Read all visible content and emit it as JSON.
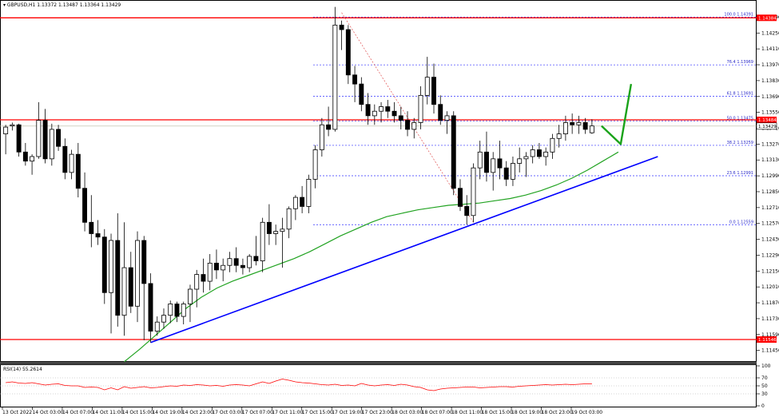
{
  "chart_data": [
    {
      "type": "candlestick",
      "symbol_header": "GBPUSD,H1  1.13372 1.13487 1.13364 1.13429",
      "ylim": [
        1.1137,
        1.1452
      ],
      "y_ticks": [
        "1.14530",
        "1.14390",
        "1.14250",
        "1.14110",
        "1.13970",
        "1.13830",
        "1.13690",
        "1.13550",
        "1.13410",
        "1.13270",
        "1.13130",
        "1.12990",
        "1.12850",
        "1.12710",
        "1.12570",
        "1.12430",
        "1.12290",
        "1.12150",
        "1.12010",
        "1.11870",
        "1.11730",
        "1.11590",
        "1.11450"
      ],
      "x_labels": [
        "13 Oct 2022",
        "14 Oct 03:00",
        "14 Oct 07:00",
        "14 Oct 11:00",
        "14 Oct 15:00",
        "14 Oct 19:00",
        "14 Oct 23:00",
        "17 Oct 03:00",
        "17 Oct 07:00",
        "17 Oct 11:00",
        "17 Oct 15:00",
        "17 Oct 19:00",
        "17 Oct 23:00",
        "18 Oct 03:00",
        "18 Oct 07:00",
        "18 Oct 11:00",
        "18 Oct 15:00",
        "18 Oct 19:00",
        "18 Oct 23:00",
        "19 Oct 03:00"
      ],
      "candles": [
        {
          "o": 1.1336,
          "h": 1.1344,
          "l": 1.1318,
          "c": 1.1342
        },
        {
          "o": 1.1343,
          "h": 1.1346,
          "l": 1.1339,
          "c": 1.1344
        },
        {
          "o": 1.1344,
          "h": 1.1345,
          "l": 1.1316,
          "c": 1.132
        },
        {
          "o": 1.132,
          "h": 1.1328,
          "l": 1.1308,
          "c": 1.1312
        },
        {
          "o": 1.1312,
          "h": 1.1318,
          "l": 1.13,
          "c": 1.1316
        },
        {
          "o": 1.1316,
          "h": 1.1364,
          "l": 1.1314,
          "c": 1.1348
        },
        {
          "o": 1.1348,
          "h": 1.1358,
          "l": 1.131,
          "c": 1.1314
        },
        {
          "o": 1.1314,
          "h": 1.1345,
          "l": 1.1308,
          "c": 1.134
        },
        {
          "o": 1.134,
          "h": 1.1344,
          "l": 1.1321,
          "c": 1.1325
        },
        {
          "o": 1.1325,
          "h": 1.1332,
          "l": 1.1296,
          "c": 1.1302
        },
        {
          "o": 1.1302,
          "h": 1.1322,
          "l": 1.1296,
          "c": 1.1318
        },
        {
          "o": 1.1318,
          "h": 1.1328,
          "l": 1.128,
          "c": 1.1288
        },
        {
          "o": 1.1288,
          "h": 1.1302,
          "l": 1.125,
          "c": 1.1258
        },
        {
          "o": 1.1258,
          "h": 1.1282,
          "l": 1.1236,
          "c": 1.1248
        },
        {
          "o": 1.1248,
          "h": 1.126,
          "l": 1.1238,
          "c": 1.1245
        },
        {
          "o": 1.1245,
          "h": 1.1252,
          "l": 1.1186,
          "c": 1.1196
        },
        {
          "o": 1.1196,
          "h": 1.1248,
          "l": 1.116,
          "c": 1.1242
        },
        {
          "o": 1.1242,
          "h": 1.1266,
          "l": 1.1166,
          "c": 1.1176
        },
        {
          "o": 1.1176,
          "h": 1.1258,
          "l": 1.1158,
          "c": 1.1218
        },
        {
          "o": 1.1218,
          "h": 1.1232,
          "l": 1.1178,
          "c": 1.1184
        },
        {
          "o": 1.1184,
          "h": 1.125,
          "l": 1.117,
          "c": 1.1242
        },
        {
          "o": 1.1242,
          "h": 1.1246,
          "l": 1.1154,
          "c": 1.1204
        },
        {
          "o": 1.1204,
          "h": 1.1213,
          "l": 1.1152,
          "c": 1.1162
        },
        {
          "o": 1.1162,
          "h": 1.1175,
          "l": 1.1158,
          "c": 1.117
        },
        {
          "o": 1.117,
          "h": 1.1182,
          "l": 1.1164,
          "c": 1.1176
        },
        {
          "o": 1.1176,
          "h": 1.1189,
          "l": 1.1169,
          "c": 1.1186
        },
        {
          "o": 1.1186,
          "h": 1.1188,
          "l": 1.117,
          "c": 1.1175
        },
        {
          "o": 1.1175,
          "h": 1.1188,
          "l": 1.1168,
          "c": 1.1186
        },
        {
          "o": 1.1186,
          "h": 1.1203,
          "l": 1.117,
          "c": 1.1199
        },
        {
          "o": 1.1199,
          "h": 1.1216,
          "l": 1.1183,
          "c": 1.1212
        },
        {
          "o": 1.1212,
          "h": 1.1226,
          "l": 1.1196,
          "c": 1.1206
        },
        {
          "o": 1.1206,
          "h": 1.123,
          "l": 1.1198,
          "c": 1.1222
        },
        {
          "o": 1.1222,
          "h": 1.1234,
          "l": 1.1208,
          "c": 1.1216
        },
        {
          "o": 1.1216,
          "h": 1.1226,
          "l": 1.1206,
          "c": 1.122
        },
        {
          "o": 1.122,
          "h": 1.1232,
          "l": 1.1214,
          "c": 1.1226
        },
        {
          "o": 1.1226,
          "h": 1.1236,
          "l": 1.1214,
          "c": 1.122
        },
        {
          "o": 1.122,
          "h": 1.1226,
          "l": 1.1212,
          "c": 1.1218
        },
        {
          "o": 1.1218,
          "h": 1.123,
          "l": 1.1214,
          "c": 1.1228
        },
        {
          "o": 1.1228,
          "h": 1.1246,
          "l": 1.122,
          "c": 1.1224
        },
        {
          "o": 1.1224,
          "h": 1.1262,
          "l": 1.1214,
          "c": 1.1258
        },
        {
          "o": 1.1258,
          "h": 1.1274,
          "l": 1.1238,
          "c": 1.1248
        },
        {
          "o": 1.1248,
          "h": 1.1256,
          "l": 1.1238,
          "c": 1.125
        },
        {
          "o": 1.125,
          "h": 1.1262,
          "l": 1.1218,
          "c": 1.1252
        },
        {
          "o": 1.1252,
          "h": 1.1272,
          "l": 1.1244,
          "c": 1.127
        },
        {
          "o": 1.127,
          "h": 1.1282,
          "l": 1.126,
          "c": 1.128
        },
        {
          "o": 1.128,
          "h": 1.129,
          "l": 1.1266,
          "c": 1.1272
        },
        {
          "o": 1.1272,
          "h": 1.13,
          "l": 1.1266,
          "c": 1.1296
        },
        {
          "o": 1.1296,
          "h": 1.1326,
          "l": 1.1288,
          "c": 1.1322
        },
        {
          "o": 1.1322,
          "h": 1.135,
          "l": 1.1316,
          "c": 1.1344
        },
        {
          "o": 1.1344,
          "h": 1.136,
          "l": 1.1334,
          "c": 1.134
        },
        {
          "o": 1.134,
          "h": 1.1448,
          "l": 1.1338,
          "c": 1.1432
        },
        {
          "o": 1.1432,
          "h": 1.1436,
          "l": 1.141,
          "c": 1.1428
        },
        {
          "o": 1.1428,
          "h": 1.1432,
          "l": 1.138,
          "c": 1.1388
        },
        {
          "o": 1.1388,
          "h": 1.1396,
          "l": 1.1364,
          "c": 1.138
        },
        {
          "o": 1.138,
          "h": 1.1386,
          "l": 1.1356,
          "c": 1.1362
        },
        {
          "o": 1.1362,
          "h": 1.1372,
          "l": 1.1344,
          "c": 1.1352
        },
        {
          "o": 1.1352,
          "h": 1.1362,
          "l": 1.1344,
          "c": 1.1356
        },
        {
          "o": 1.1356,
          "h": 1.1364,
          "l": 1.1346,
          "c": 1.136
        },
        {
          "o": 1.136,
          "h": 1.1366,
          "l": 1.135,
          "c": 1.1356
        },
        {
          "o": 1.1356,
          "h": 1.1364,
          "l": 1.1346,
          "c": 1.1352
        },
        {
          "o": 1.1352,
          "h": 1.136,
          "l": 1.134,
          "c": 1.1348
        },
        {
          "o": 1.1348,
          "h": 1.1356,
          "l": 1.1334,
          "c": 1.134
        },
        {
          "o": 1.134,
          "h": 1.135,
          "l": 1.1332,
          "c": 1.1346
        },
        {
          "o": 1.1346,
          "h": 1.1378,
          "l": 1.134,
          "c": 1.137
        },
        {
          "o": 1.137,
          "h": 1.1404,
          "l": 1.1362,
          "c": 1.1386
        },
        {
          "o": 1.1386,
          "h": 1.1398,
          "l": 1.1354,
          "c": 1.1362
        },
        {
          "o": 1.1362,
          "h": 1.137,
          "l": 1.1344,
          "c": 1.1348
        },
        {
          "o": 1.1348,
          "h": 1.1356,
          "l": 1.1336,
          "c": 1.1352
        },
        {
          "o": 1.1352,
          "h": 1.1356,
          "l": 1.1282,
          "c": 1.1288
        },
        {
          "o": 1.1288,
          "h": 1.1296,
          "l": 1.1268,
          "c": 1.1272
        },
        {
          "o": 1.1272,
          "h": 1.1282,
          "l": 1.1256,
          "c": 1.1264
        },
        {
          "o": 1.1264,
          "h": 1.131,
          "l": 1.1258,
          "c": 1.1306
        },
        {
          "o": 1.1306,
          "h": 1.133,
          "l": 1.1296,
          "c": 1.132
        },
        {
          "o": 1.132,
          "h": 1.1338,
          "l": 1.1294,
          "c": 1.1302
        },
        {
          "o": 1.1302,
          "h": 1.132,
          "l": 1.1286,
          "c": 1.1314
        },
        {
          "o": 1.1314,
          "h": 1.133,
          "l": 1.1296,
          "c": 1.1306
        },
        {
          "o": 1.1306,
          "h": 1.1312,
          "l": 1.129,
          "c": 1.1296
        },
        {
          "o": 1.1296,
          "h": 1.1316,
          "l": 1.129,
          "c": 1.131
        },
        {
          "o": 1.131,
          "h": 1.1324,
          "l": 1.1302,
          "c": 1.1314
        },
        {
          "o": 1.1314,
          "h": 1.132,
          "l": 1.1298,
          "c": 1.1316
        },
        {
          "o": 1.1316,
          "h": 1.1326,
          "l": 1.131,
          "c": 1.1322
        },
        {
          "o": 1.1322,
          "h": 1.1328,
          "l": 1.1314,
          "c": 1.1316
        },
        {
          "o": 1.1316,
          "h": 1.1324,
          "l": 1.1308,
          "c": 1.132
        },
        {
          "o": 1.132,
          "h": 1.1336,
          "l": 1.1314,
          "c": 1.1332
        },
        {
          "o": 1.1332,
          "h": 1.1344,
          "l": 1.1324,
          "c": 1.1336
        },
        {
          "o": 1.1336,
          "h": 1.1352,
          "l": 1.133,
          "c": 1.1346
        },
        {
          "o": 1.1346,
          "h": 1.1354,
          "l": 1.1336,
          "c": 1.1344
        },
        {
          "o": 1.1344,
          "h": 1.1352,
          "l": 1.1336,
          "c": 1.1346
        },
        {
          "o": 1.1346,
          "h": 1.135,
          "l": 1.1336,
          "c": 1.134
        },
        {
          "o": 1.1337,
          "h": 1.1349,
          "l": 1.1336,
          "c": 1.1343
        }
      ],
      "moving_average": [
        1.1135,
        1.1146,
        1.1158,
        1.117,
        1.1182,
        1.1192,
        1.12,
        1.1206,
        1.1211,
        1.1216,
        1.1221,
        1.1226,
        1.1232,
        1.1239,
        1.1246,
        1.1252,
        1.1258,
        1.1263,
        1.1266,
        1.1269,
        1.1271,
        1.1273,
        1.1274,
        1.1275,
        1.1277,
        1.1279,
        1.1282,
        1.1286,
        1.1291,
        1.1297,
        1.1304,
        1.1312,
        1.132
      ],
      "horizontal_levels": [
        {
          "value": 1.14384,
          "label": "1.14384"
        },
        {
          "value": 1.13484,
          "label": "1.13484"
        },
        {
          "value": 1.11546,
          "label": "1.11546"
        }
      ],
      "current_price": "1.13429",
      "fibonacci": [
        {
          "level": "100.0",
          "value": 1.14391,
          "label": "100.0  1.14391"
        },
        {
          "level": "76.4",
          "value": 1.13969,
          "label": "76.4  1.13969"
        },
        {
          "level": "61.8",
          "value": 1.13691,
          "label": "61.8  1.13691"
        },
        {
          "level": "50.0",
          "value": 1.13475,
          "label": "50.0  1.13475"
        },
        {
          "level": "38.2",
          "value": 1.13259,
          "label": "38.2  1.13259"
        },
        {
          "level": "23.6",
          "value": 1.12991,
          "label": "23.6  1.12991"
        },
        {
          "level": "0.0",
          "value": 1.12559,
          "label": "0.0  1.12559"
        }
      ],
      "trendline": {
        "from": 1.1152,
        "to": 1.1316
      },
      "fib_swing": {
        "high": 1.1443,
        "low": 1.1258
      },
      "projection_arrow": {
        "from": 1.1343,
        "dip": 1.1327,
        "target": 1.138
      },
      "colors": {
        "level_line": "#ff0000",
        "trendline": "#0000ff",
        "moving_average": "#22a322",
        "fib": "#3030ff",
        "arrow": "#1aa31a",
        "rsi": "#ff0000",
        "candle": "#000000"
      }
    },
    {
      "type": "line",
      "indicator_label": "RSI(14) 55.2614",
      "ylim": [
        0,
        100
      ],
      "y_ticks": [
        "100",
        "70",
        "50",
        "30",
        "0"
      ],
      "values": [
        58,
        60,
        57,
        56,
        58,
        55,
        52,
        54,
        55,
        51,
        50,
        50,
        46,
        47,
        46,
        40,
        45,
        40,
        48,
        44,
        46,
        48,
        45,
        46,
        48,
        50,
        49,
        52,
        51,
        53,
        52,
        50,
        51,
        49,
        52,
        53,
        52,
        50,
        55,
        60,
        56,
        62,
        67,
        64,
        60,
        58,
        57,
        55,
        53,
        52,
        54,
        51,
        52,
        50,
        56,
        52,
        50,
        52,
        53,
        51,
        54,
        52,
        48,
        46,
        40,
        38,
        42,
        44,
        45,
        46,
        47,
        47,
        45,
        46,
        47,
        48,
        48,
        47,
        49,
        50,
        51,
        52,
        53,
        52,
        53,
        54,
        53,
        54,
        55,
        55
      ]
    }
  ]
}
